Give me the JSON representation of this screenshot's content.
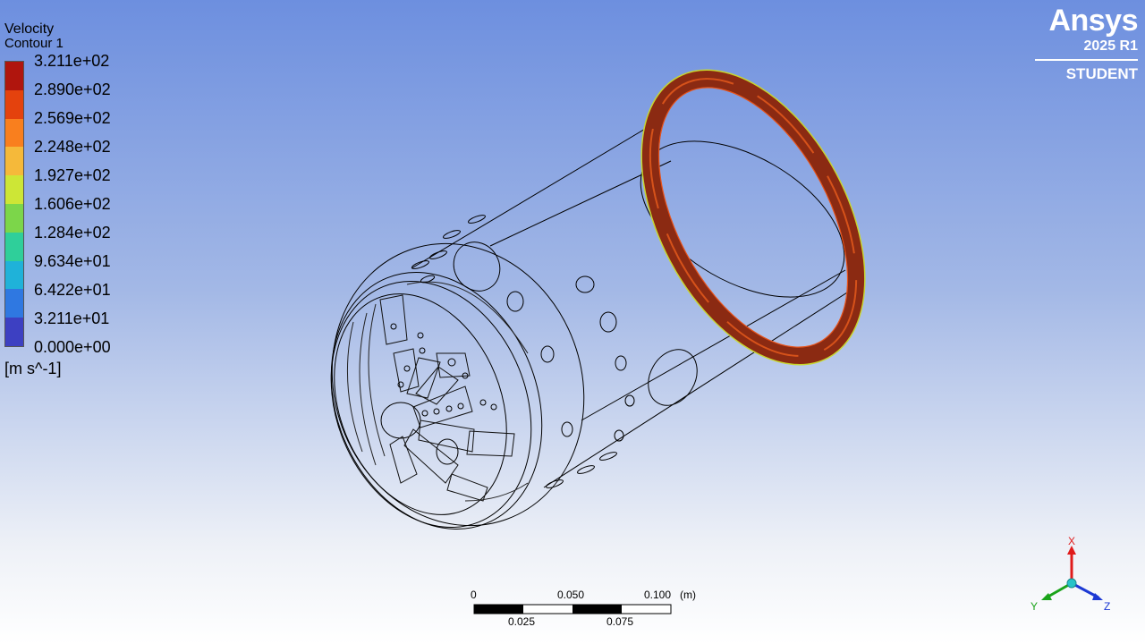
{
  "legend": {
    "title": "Velocity",
    "subtitle": "Contour 1",
    "tick_labels": [
      "3.211e+02",
      "2.890e+02",
      "2.569e+02",
      "2.248e+02",
      "1.927e+02",
      "1.606e+02",
      "1.284e+02",
      "9.634e+01",
      "6.422e+01",
      "3.211e+01",
      "0.000e+00"
    ],
    "colors": [
      "#b0150d",
      "#e4420d",
      "#f97f1e",
      "#f5b93a",
      "#cde636",
      "#7cd64a",
      "#2fcf9a",
      "#1fb2d9",
      "#2f78e1",
      "#3d40c2"
    ],
    "units": "[m s^-1]"
  },
  "brand": {
    "name": "Ansys",
    "version": "2025 R1",
    "edition": "STUDENT"
  },
  "scale": {
    "top_labels": [
      "0",
      "0.050",
      "0.100"
    ],
    "bottom_labels": [
      "0.025",
      "0.075"
    ],
    "units": "(m)"
  },
  "axes": {
    "x": "X",
    "y": "Y",
    "z": "Z"
  },
  "colors": {
    "x_axis": "#e01b1b",
    "y_axis": "#1aa31a",
    "z_axis": "#1c39d4",
    "ring_fill": "#8b2a12",
    "ring_edge": "#e8531a",
    "ring_inner": "#c7d630"
  }
}
